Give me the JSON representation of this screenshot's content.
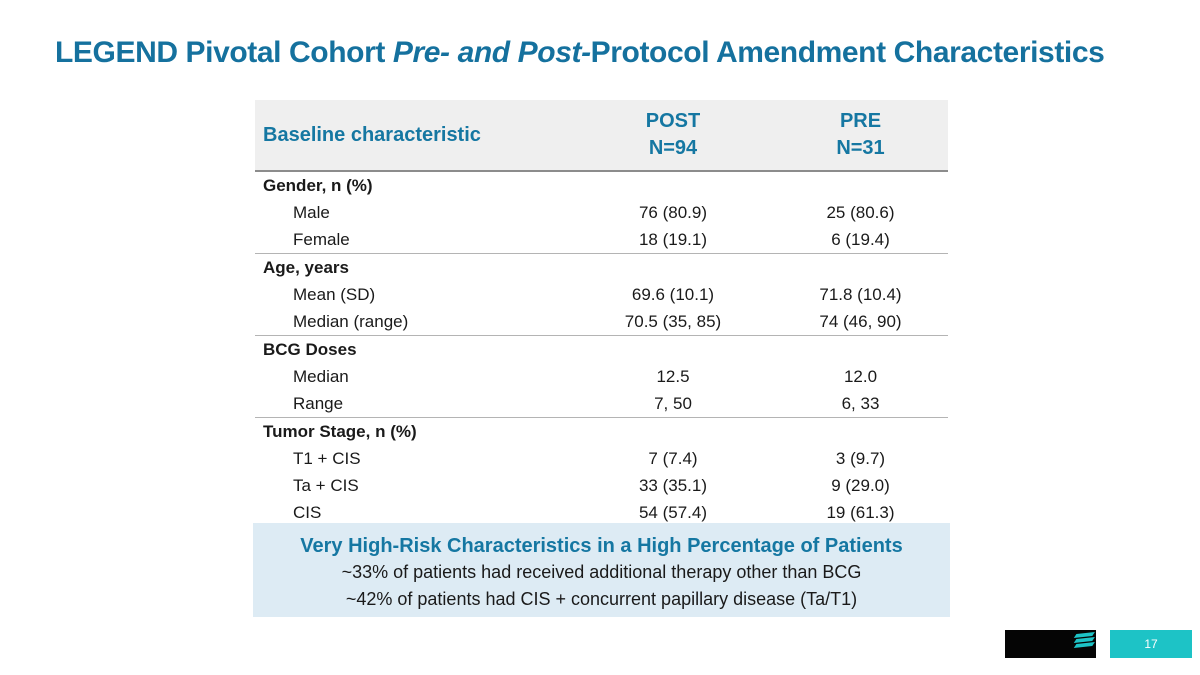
{
  "slide": {
    "title": {
      "prefix": "LEGEND Pivotal Cohort ",
      "italic": "Pre- and Post-",
      "suffix": "Protocol Amendment Characteristics"
    }
  },
  "table": {
    "header": {
      "label": "Baseline characteristic",
      "post_line1": "POST",
      "post_line2": "N=94",
      "pre_line1": "PRE",
      "pre_line2": "N=31"
    },
    "sections": [
      {
        "title": "Gender, n (%)",
        "rows": [
          {
            "label": "Male",
            "post": "76 (80.9)",
            "pre": "25 (80.6)"
          },
          {
            "label": "Female",
            "post": "18 (19.1)",
            "pre": "6 (19.4)"
          }
        ]
      },
      {
        "title": "Age, years",
        "rows": [
          {
            "label": "Mean (SD)",
            "post": "69.6 (10.1)",
            "pre": "71.8 (10.4)"
          },
          {
            "label": "Median (range)",
            "post": "70.5 (35, 85)",
            "pre": "74 (46, 90)"
          }
        ]
      },
      {
        "title": "BCG Doses",
        "rows": [
          {
            "label": "Median",
            "post": "12.5",
            "pre": "12.0"
          },
          {
            "label": "Range",
            "post": "7, 50",
            "pre": "6, 33"
          }
        ]
      },
      {
        "title": "Tumor Stage, n (%)",
        "rows": [
          {
            "label": "T1 + CIS",
            "post": "7 (7.4)",
            "pre": "3 (9.7)"
          },
          {
            "label": "Ta + CIS",
            "post": "33 (35.1)",
            "pre": "9 (29.0)"
          },
          {
            "label": "CIS",
            "post": "54 (57.4)",
            "pre": "19 (61.3)"
          }
        ]
      }
    ]
  },
  "callout": {
    "title": "Very High-Risk Characteristics in a High Percentage of Patients",
    "lines": [
      "~33% of patients had received additional therapy other than BCG",
      "~42% of patients had CIS + concurrent papillary disease (Ta/T1)"
    ]
  },
  "footer": {
    "page_number": "17"
  },
  "colors": {
    "accent_teal": "#1577a2",
    "bright_teal": "#1dc3c6",
    "callout_bg": "#ddebf4",
    "header_bg": "#efefef"
  }
}
